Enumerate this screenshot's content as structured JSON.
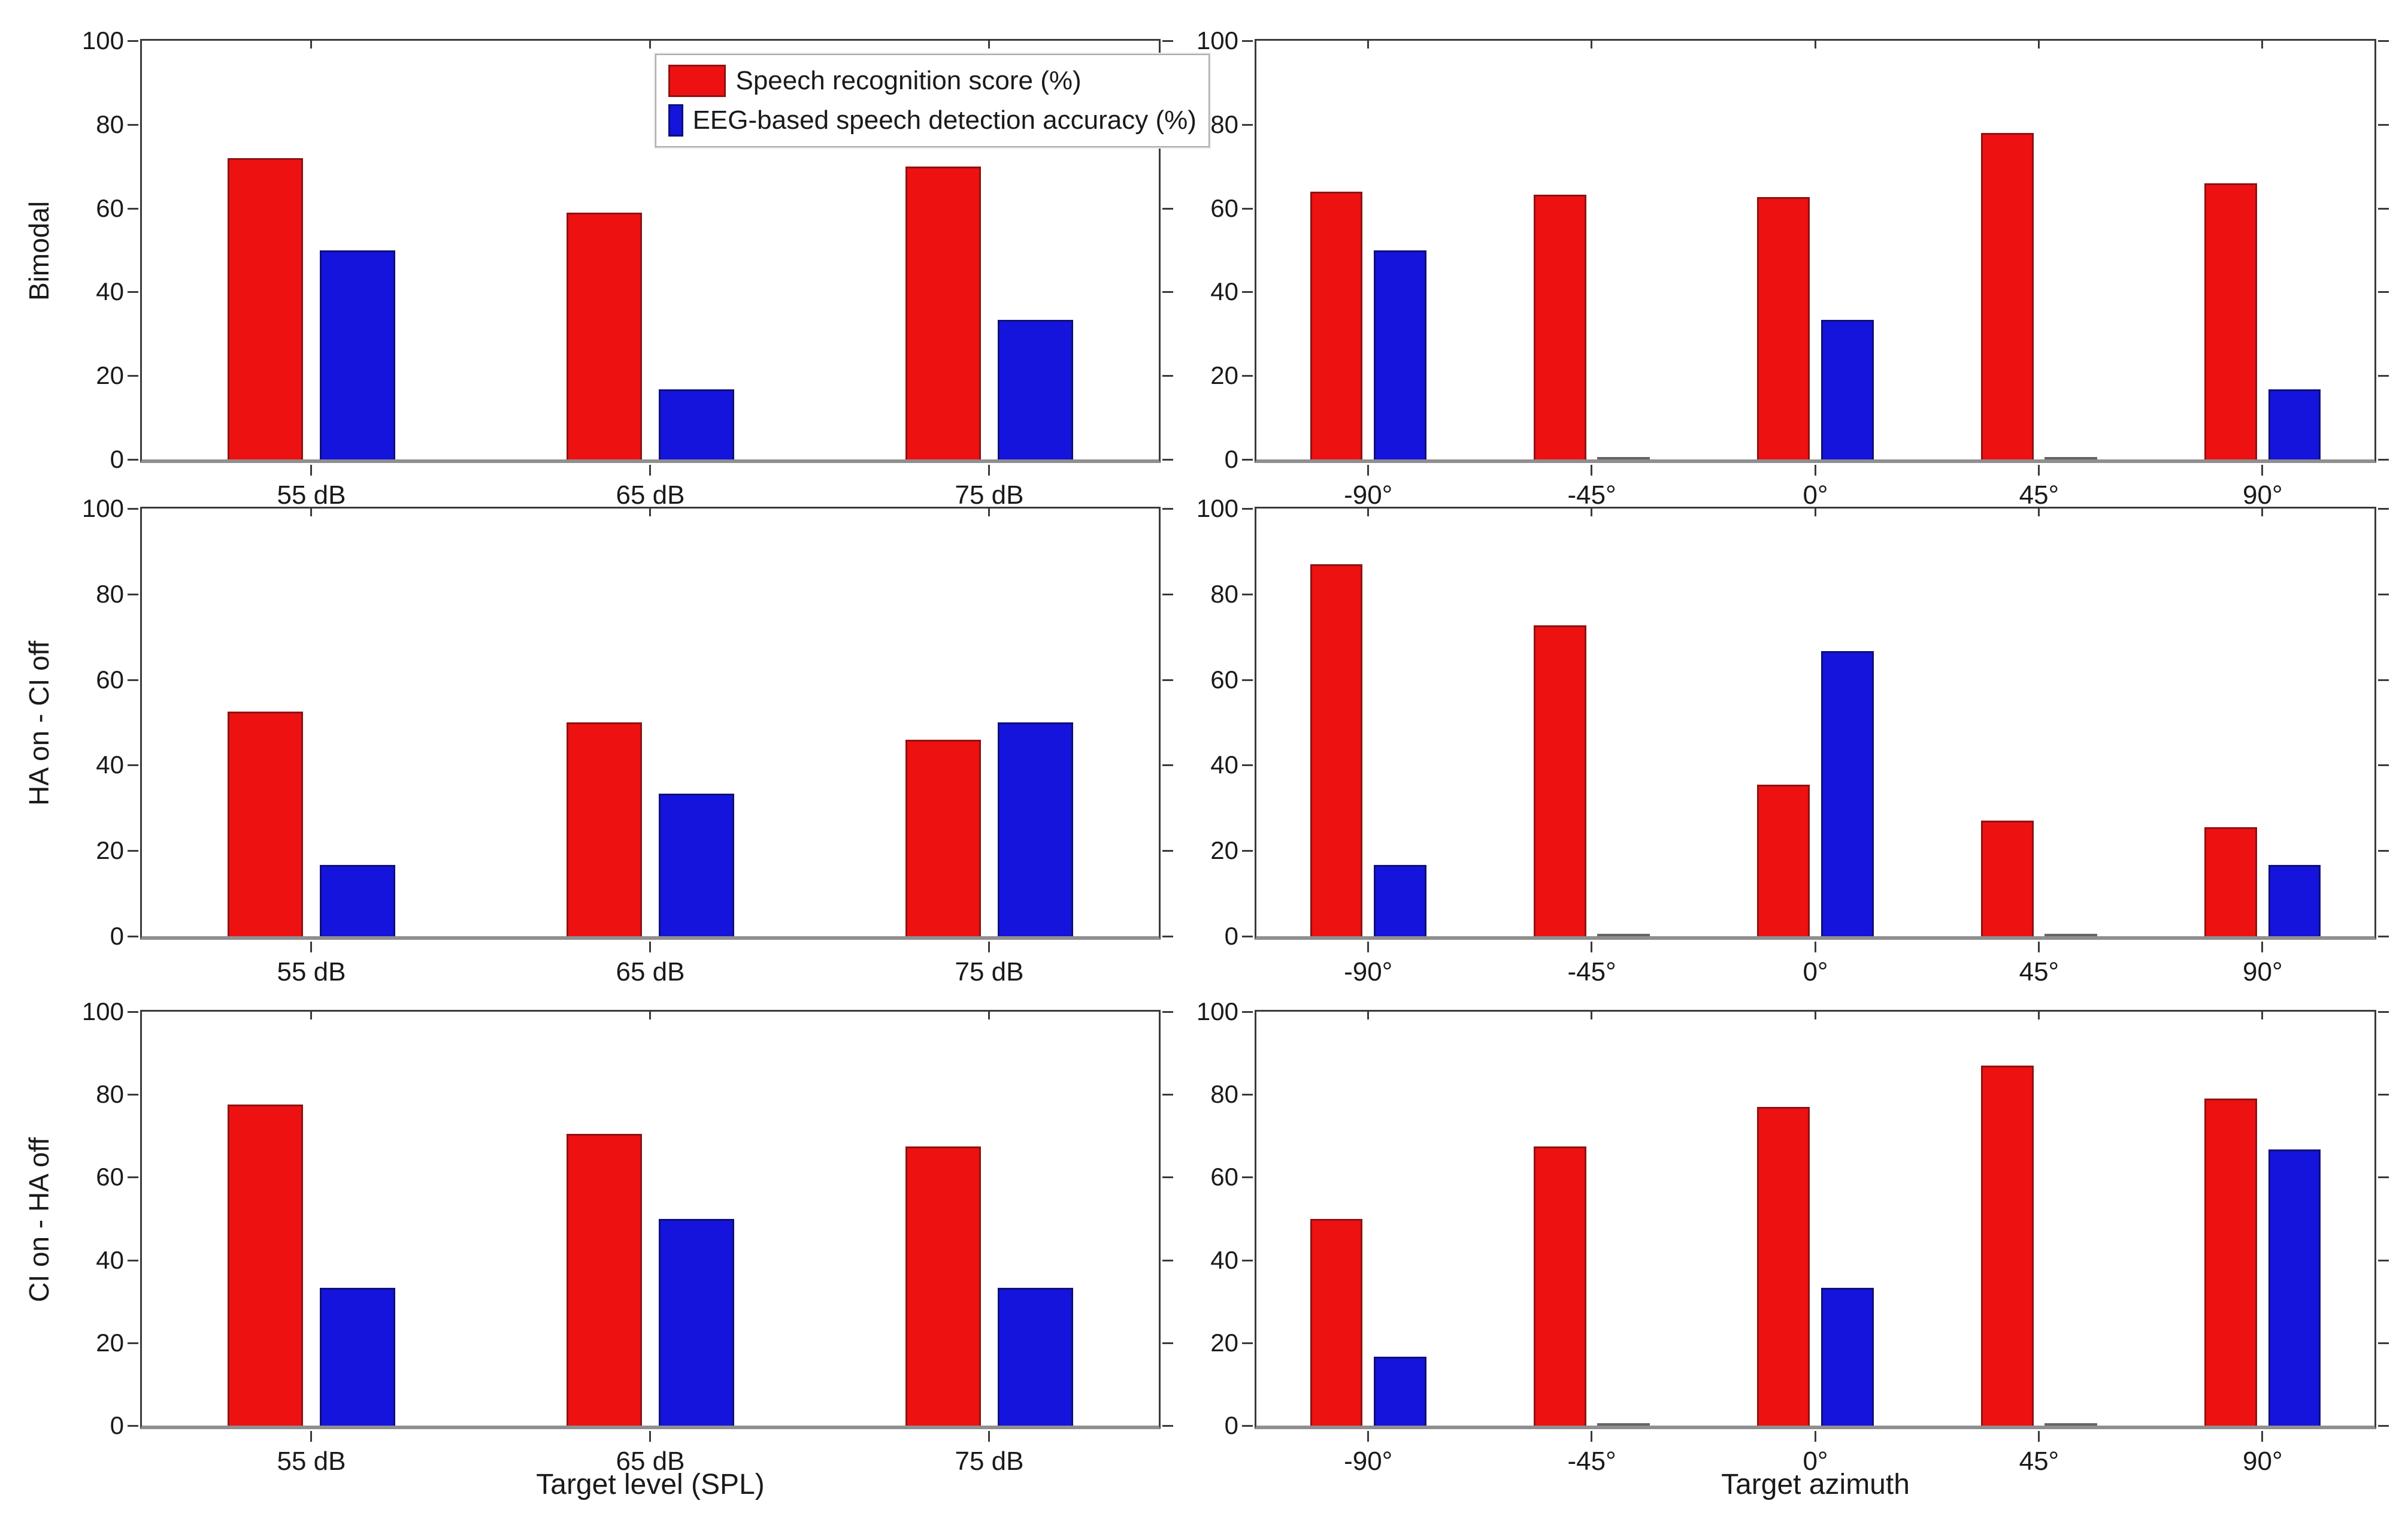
{
  "figure": {
    "background": "#ffffff",
    "series_colors": {
      "speech_fill": "#ee1111",
      "speech_edge": "#8f1212",
      "eeg_fill": "#1414dd",
      "eeg_edge": "#101078"
    }
  },
  "legend": {
    "entries": [
      {
        "label": "Speech recognition score (%)",
        "color": "#ee1111",
        "edge": "#8f1212"
      },
      {
        "label": "EEG-based speech detection accuracy (%)",
        "color": "#1414dd",
        "edge": "#101078"
      }
    ]
  },
  "chart_data": [
    {
      "type": "bar",
      "row_label": "Bimodal",
      "categories": [
        "55 dB",
        "65 dB",
        "75 dB"
      ],
      "series": [
        {
          "name": "Speech recognition score (%)",
          "color": "#ee1111",
          "edge": "#8f1212",
          "values": [
            72,
            59,
            70
          ]
        },
        {
          "name": "EEG-based speech detection accuracy (%)",
          "color": "#1414dd",
          "edge": "#101078",
          "values": [
            50,
            16.7,
            33.3
          ]
        }
      ],
      "ylim": [
        0,
        100
      ],
      "yticks": [
        0,
        20,
        40,
        60,
        80,
        100
      ],
      "xlabel": ""
    },
    {
      "type": "bar",
      "row_label": "Bimodal",
      "categories": [
        "-90°",
        "-45°",
        "0°",
        "45°",
        "90°"
      ],
      "series": [
        {
          "name": "Speech recognition score (%)",
          "color": "#ee1111",
          "edge": "#8f1212",
          "values": [
            64,
            63.3,
            62.7,
            78,
            66
          ]
        },
        {
          "name": "EEG-based speech detection accuracy (%)",
          "color": "#1414dd",
          "edge": "#101078",
          "values": [
            50,
            0,
            33.3,
            0,
            16.7
          ]
        }
      ],
      "ylim": [
        0,
        100
      ],
      "yticks": [
        0,
        20,
        40,
        60,
        80,
        100
      ],
      "xlabel": ""
    },
    {
      "type": "bar",
      "row_label": "HA on - CI off",
      "categories": [
        "55 dB",
        "65 dB",
        "75 dB"
      ],
      "series": [
        {
          "name": "Speech recognition score (%)",
          "color": "#ee1111",
          "edge": "#8f1212",
          "values": [
            52.5,
            50,
            46
          ]
        },
        {
          "name": "EEG-based speech detection accuracy (%)",
          "color": "#1414dd",
          "edge": "#101078",
          "values": [
            16.7,
            33.3,
            50
          ]
        }
      ],
      "ylim": [
        0,
        100
      ],
      "yticks": [
        0,
        20,
        40,
        60,
        80,
        100
      ],
      "xlabel": ""
    },
    {
      "type": "bar",
      "row_label": "HA on - CI off",
      "categories": [
        "-90°",
        "-45°",
        "0°",
        "45°",
        "90°"
      ],
      "series": [
        {
          "name": "Speech recognition score (%)",
          "color": "#ee1111",
          "edge": "#8f1212",
          "values": [
            87,
            72.7,
            35.5,
            27,
            25.5
          ]
        },
        {
          "name": "EEG-based speech detection accuracy (%)",
          "color": "#1414dd",
          "edge": "#101078",
          "values": [
            16.7,
            0,
            66.7,
            0,
            16.7
          ]
        }
      ],
      "ylim": [
        0,
        100
      ],
      "yticks": [
        0,
        20,
        40,
        60,
        80,
        100
      ],
      "xlabel": ""
    },
    {
      "type": "bar",
      "row_label": "CI on - HA off",
      "categories": [
        "55 dB",
        "65 dB",
        "75 dB"
      ],
      "series": [
        {
          "name": "Speech recognition score (%)",
          "color": "#ee1111",
          "edge": "#8f1212",
          "values": [
            77.5,
            70.5,
            67.5
          ]
        },
        {
          "name": "EEG-based speech detection accuracy (%)",
          "color": "#1414dd",
          "edge": "#101078",
          "values": [
            33.3,
            50,
            33.3
          ]
        }
      ],
      "ylim": [
        0,
        100
      ],
      "yticks": [
        0,
        20,
        40,
        60,
        80,
        100
      ],
      "xlabel": "Target level (SPL)"
    },
    {
      "type": "bar",
      "row_label": "CI on - HA off",
      "categories": [
        "-90°",
        "-45°",
        "0°",
        "45°",
        "90°"
      ],
      "series": [
        {
          "name": "Speech recognition score (%)",
          "color": "#ee1111",
          "edge": "#8f1212",
          "values": [
            50,
            67.5,
            77,
            87,
            79
          ]
        },
        {
          "name": "EEG-based speech detection accuracy (%)",
          "color": "#1414dd",
          "edge": "#101078",
          "values": [
            16.7,
            0,
            33.3,
            0,
            66.7
          ]
        }
      ],
      "ylim": [
        0,
        100
      ],
      "yticks": [
        0,
        20,
        40,
        60,
        80,
        100
      ],
      "xlabel": "Target azimuth"
    }
  ]
}
